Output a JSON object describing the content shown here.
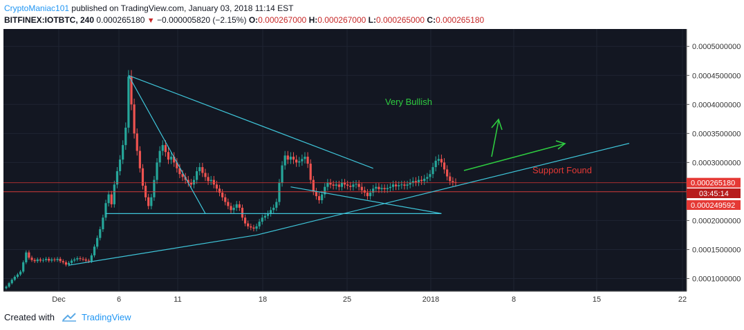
{
  "header": {
    "author": "CryptoManiac101",
    "published": "published on TradingView.com, January 03, 2018 11:14 EST",
    "symbol": "BITFINEX:IOTBTC, 240",
    "last": "0.000265180",
    "change": "−0.000005820 (−2.15%)",
    "open_label": "O:",
    "open": "0.000267000",
    "high_label": "H:",
    "high": "0.000267000",
    "low_label": "L:",
    "low": "0.000265000",
    "close_label": "C:",
    "close": "0.000265180"
  },
  "footer": {
    "created_with": "Created with",
    "brand": "TradingView"
  },
  "colors": {
    "background": "#131722",
    "up": "#26a69a",
    "down": "#ef5350",
    "trendline": "#3fc6da",
    "annotation_green": "#2ecc40",
    "annotation_red": "#e53935",
    "price_badge": "#e53935"
  },
  "chart_data": {
    "type": "candlestick",
    "x_axis_labels": [
      "Dec",
      "6",
      "11",
      "18",
      "25",
      "2018",
      "8",
      "15",
      "22"
    ],
    "y_axis_labels": [
      "0.0005000000",
      "0.0004500000",
      "0.0004000000",
      "0.0003500000",
      "0.0003000000",
      "0.0002500000",
      "0.0002000000",
      "0.0001500000",
      "0.0001000000"
    ],
    "ylim": [
      7.8e-05,
      0.00053
    ],
    "price_badges": [
      {
        "label": "0.000265180",
        "value": 0.00026518
      },
      {
        "label": "03:45:14",
        "value": 0.00025518
      },
      {
        "label": "0.000249592",
        "value": 0.000249592
      }
    ],
    "annotations": [
      {
        "text": "Very Bullish",
        "color": "green"
      },
      {
        "text": "Support Found",
        "color": "red"
      }
    ],
    "series_close": [
      8.6e-05,
      9.2e-05,
      9.8e-05,
      0.000103,
      0.000107,
      0.000112,
      0.000128,
      0.000145,
      0.000136,
      0.000132,
      0.00013,
      0.000133,
      0.000131,
      0.000132,
      0.000134,
      0.000131,
      0.000133,
      0.000132,
      0.000134,
      0.00013,
      0.000128,
      0.000124,
      0.000127,
      0.000131,
      0.000133,
      0.000135,
      0.000134,
      0.000133,
      0.000131,
      0.00013,
      0.00014,
      0.000155,
      0.00017,
      0.000185,
      0.000205,
      0.00023,
      0.000245,
      0.000228,
      0.000262,
      0.000285,
      0.000305,
      0.00033,
      0.00036,
      0.000448,
      0.0004,
      0.00035,
      0.00032,
      0.00029,
      0.00026,
      0.00024,
      0.000225,
      0.00024,
      0.00027,
      0.0003,
      0.00032,
      0.00033,
      0.000318,
      0.000305,
      0.00031,
      0.0003,
      0.00029,
      0.00028,
      0.000275,
      0.00027,
      0.000265,
      0.000262,
      0.00027,
      0.000285,
      0.000292,
      0.000282,
      0.000275,
      0.000268,
      0.00027,
      0.000262,
      0.000255,
      0.000248,
      0.00024,
      0.000232,
      0.000225,
      0.000218,
      0.000222,
      0.000228,
      0.000222,
      0.000205,
      0.000195,
      0.00019,
      0.000188,
      0.000186,
      0.00019,
      0.000198,
      0.000205,
      0.000208,
      0.000212,
      0.000218,
      0.000222,
      0.000232,
      0.000265,
      0.000295,
      0.000312,
      0.000305,
      0.00031,
      0.000305,
      0.0003,
      0.000302,
      0.000306,
      0.00031,
      0.000298,
      0.00027,
      0.00025,
      0.000242,
      0.000235,
      0.000245,
      0.000258,
      0.000265,
      0.000262,
      0.00026,
      0.000262,
      0.000258,
      0.000265,
      0.000262,
      0.00026,
      0.000258,
      0.000262,
      0.000263,
      0.000258,
      0.000252,
      0.000248,
      0.000242,
      0.000248,
      0.000255,
      0.000258,
      0.000254,
      0.000256,
      0.000254,
      0.000256,
      0.000258,
      0.000262,
      0.000259,
      0.000261,
      0.000262,
      0.00026,
      0.000262,
      0.000265,
      0.000268,
      0.000266,
      0.00027,
      0.000268,
      0.000272,
      0.000275,
      0.00028,
      0.000292,
      0.000303,
      0.000306,
      0.0003,
      0.000288,
      0.000276,
      0.000268,
      0.000266,
      0.000265
    ]
  }
}
